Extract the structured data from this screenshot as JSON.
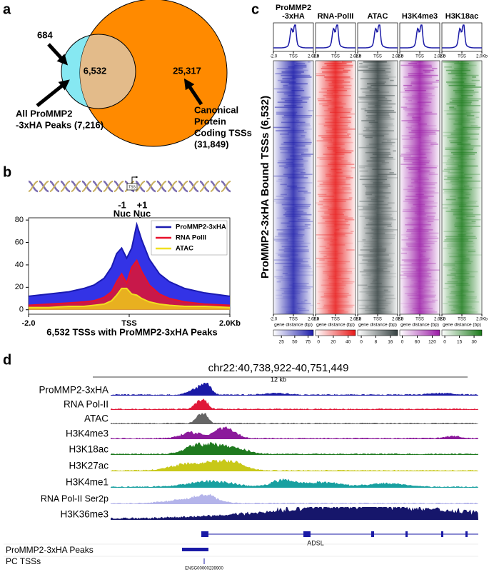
{
  "panel_labels": [
    "a",
    "b",
    "c",
    "d"
  ],
  "venn": {
    "counts": {
      "left_only": "684",
      "overlap": "6,532",
      "right_only": "25,317"
    },
    "left_label": [
      "All ProMMP2",
      "-3xHA Peaks (7,216)"
    ],
    "right_label": [
      "Canonical",
      "Protein",
      "Coding TSSs",
      "(31,849)"
    ],
    "colors": {
      "left": "#86e8f2",
      "overlap": "#e3bb8a",
      "right": "#ff8a00"
    }
  },
  "profile": {
    "type": "area",
    "tss_label": "TSS",
    "nucleosome_labels": [
      [
        "-1",
        "Nuc"
      ],
      [
        "+1",
        "Nuc"
      ]
    ],
    "x": [
      -2000,
      -1600,
      -1200,
      -900,
      -700,
      -500,
      -350,
      -250,
      -150,
      -50,
      50,
      150,
      250,
      400,
      600,
      800,
      1100,
      1500,
      2000
    ],
    "xlim": [
      -2000,
      2000
    ],
    "xticks": [
      {
        "value": -2000,
        "label": "-2.0"
      },
      {
        "value": 0,
        "label": "TSS"
      },
      {
        "value": 2000,
        "label": "2.0Kb"
      }
    ],
    "ylim": [
      -4,
      82
    ],
    "yticks": [
      0,
      20,
      40,
      60,
      80
    ],
    "xlabel": "6,532 TSSs with ProMMP2-3xHA Peaks",
    "legend": "upper right",
    "series": [
      {
        "name": "ProMMP2-3xHA",
        "color": "#3333e6",
        "line_color": "#1a1ab0",
        "values": [
          12,
          14,
          16,
          19,
          22,
          28,
          38,
          50,
          55,
          46,
          55,
          76,
          62,
          45,
          32,
          25,
          19,
          15,
          12
        ]
      },
      {
        "name": "RNA PolII",
        "color": "#c8184a",
        "line_color": "#e8102a",
        "values": [
          4,
          5,
          6,
          7,
          8,
          11,
          16,
          25,
          32,
          24,
          38,
          44,
          34,
          22,
          14,
          10,
          7,
          5,
          4
        ]
      },
      {
        "name": "ATAC",
        "color": "#e8b020",
        "line_color": "#f0e020",
        "values": [
          2,
          2,
          3,
          3,
          4,
          5,
          8,
          13,
          19,
          19,
          14,
          13,
          10,
          7,
          5,
          4,
          3,
          3,
          2
        ]
      }
    ]
  },
  "heatmaps": {
    "ylabel": "ProMMP2-3xHA Bound TSSs (6,532)",
    "xlabel": "gene distance (bp)",
    "xlim": [
      -2000,
      2000
    ],
    "xticks": [
      {
        "value": -2000,
        "label": "-2.0"
      },
      {
        "value": 0,
        "label": "TSS"
      },
      {
        "value": 2000,
        "label": "2.0Kb"
      }
    ],
    "columns": [
      {
        "title": [
          "ProMMP2",
          "-3xHA"
        ],
        "color": "#1c1caa",
        "cbar_lim": [
          10,
          85
        ],
        "cbar_ticks": [
          25,
          50,
          75
        ]
      },
      {
        "title": [
          "RNA-PolII"
        ],
        "color": "#e81818",
        "cbar_lim": [
          -4,
          50
        ],
        "cbar_ticks": [
          0,
          20,
          40
        ]
      },
      {
        "title": [
          "ATAC"
        ],
        "color": "#344040",
        "cbar_lim": [
          -2,
          20
        ],
        "cbar_ticks": [
          0,
          8,
          16
        ]
      },
      {
        "title": [
          "H3K4me3"
        ],
        "color": "#9a1aa6",
        "cbar_lim": [
          -10,
          150
        ],
        "cbar_ticks": [
          0,
          60,
          120
        ]
      },
      {
        "title": [
          "H3K18ac"
        ],
        "color": "#1a7a1a",
        "cbar_lim": [
          -3,
          38
        ],
        "cbar_ticks": [
          0,
          15,
          30
        ]
      }
    ]
  },
  "tracks": {
    "locus": "chr22:40,738,922-40,751,449",
    "scale": "12 kb",
    "rows": [
      {
        "name": "ProMMP2-3xHA",
        "color": "#1a1aa6"
      },
      {
        "name": "RNA Pol-II",
        "color": "#e01838"
      },
      {
        "name": "ATAC",
        "color": "#666666"
      },
      {
        "name": "H3K4me3",
        "color": "#8b1a9b"
      },
      {
        "name": "H3K18ac",
        "color": "#1f7a1f"
      },
      {
        "name": "H3K27ac",
        "color": "#c8c818"
      },
      {
        "name": "H3K4me1",
        "color": "#18a0a0"
      },
      {
        "name": "RNA Pol-II Ser2p",
        "color": "#b4b4ea"
      },
      {
        "name": "H3K36me3",
        "color": "#16166b"
      }
    ],
    "gene": "ADSL",
    "feature_rows": [
      "ProMMP2-3xHA Peaks",
      "PC TSSs"
    ],
    "tss_label": "ENSG00000239900"
  }
}
